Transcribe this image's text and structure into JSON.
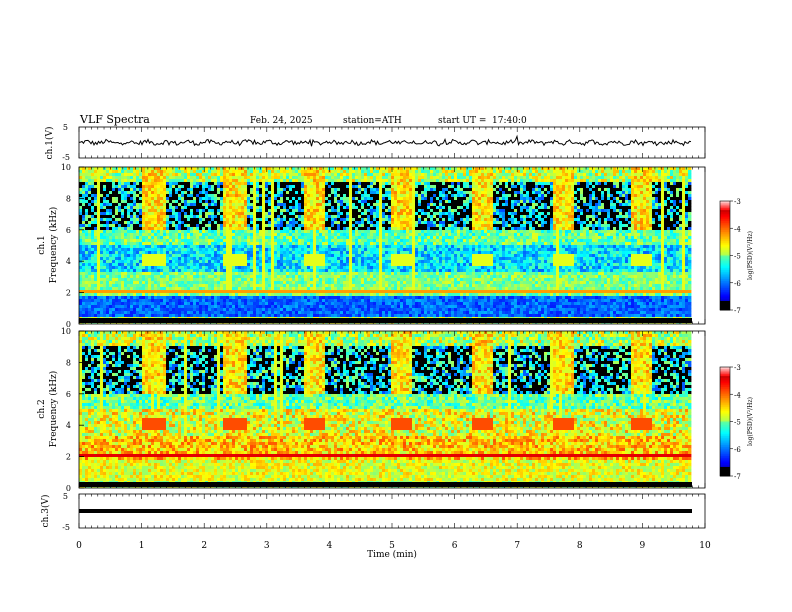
{
  "header": {
    "title": "VLF Spectra",
    "date": "Feb. 24, 2025",
    "station": "station=ATH",
    "start": "start UT =",
    "start_time": "17:40:0"
  },
  "chart_data": [
    {
      "type": "line",
      "ylabel": "ch.1(V)",
      "ylim": [
        -5,
        5
      ],
      "yticks": [
        "5",
        "-5"
      ],
      "series": [
        {
          "values_note_mean": 0
        }
      ]
    },
    {
      "type": "heatmap",
      "ylabel": "ch.1",
      "ylabel2": "Frequency (kHz)",
      "ylim": [
        0,
        10
      ],
      "yticks": [
        "0",
        "2",
        "4",
        "6",
        "8",
        "10"
      ],
      "colorbar": {
        "label": "log(PSD)(V²/Hz)",
        "ticks": [
          "-3",
          "-4",
          "-5",
          "-6",
          "-7"
        ],
        "range": [
          -7,
          -3
        ]
      }
    },
    {
      "type": "heatmap",
      "ylabel": "ch.2",
      "ylabel2": "Frequency (kHz)",
      "ylim": [
        0,
        10
      ],
      "yticks": [
        "0",
        "2",
        "4",
        "6",
        "8",
        "10"
      ],
      "colorbar": {
        "label": "log(PSD)(V²/Hz)",
        "ticks": [
          "-3",
          "-4",
          "-5",
          "-6",
          "-7"
        ],
        "range": [
          -7,
          -3
        ]
      }
    },
    {
      "type": "line",
      "ylabel": "ch.3(V)",
      "ylim": [
        -5,
        5
      ],
      "yticks": [
        "5",
        "-5"
      ]
    }
  ],
  "xaxis": {
    "label": "Time (min)",
    "ticks": [
      "0",
      "1",
      "2",
      "3",
      "4",
      "5",
      "6",
      "7",
      "8",
      "9",
      "10"
    ],
    "xlim": [
      0,
      10
    ]
  }
}
